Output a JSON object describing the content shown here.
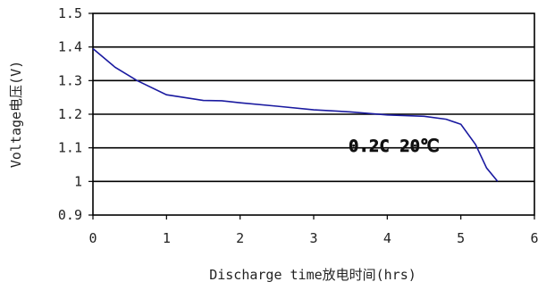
{
  "chart_data": {
    "type": "line",
    "title": "",
    "xlabel": "Discharge time放电时间(hrs)",
    "ylabel": "Voltage电压(V)",
    "xlim": [
      0,
      6
    ],
    "ylim": [
      0.9,
      1.5
    ],
    "x_ticks": [
      "0",
      "1",
      "2",
      "3",
      "4",
      "5",
      "6"
    ],
    "y_ticks": [
      "1.5",
      "1.4",
      "1.3",
      "1.2",
      "1.1",
      "1",
      "0.9"
    ],
    "grid": "horizontal",
    "annotation": "0.2C 20℃",
    "line_color": "#1a1aa0",
    "series": [
      {
        "x": [
          0,
          0.3,
          0.6,
          1.0,
          1.5,
          1.75,
          2.0,
          2.5,
          3.0,
          3.5,
          4.0,
          4.5,
          4.8,
          5.0,
          5.2,
          5.35,
          5.5
        ],
        "y": [
          1.395,
          1.34,
          1.3,
          1.258,
          1.241,
          1.24,
          1.234,
          1.224,
          1.213,
          1.207,
          1.198,
          1.194,
          1.185,
          1.17,
          1.11,
          1.04,
          1.0
        ]
      }
    ]
  }
}
